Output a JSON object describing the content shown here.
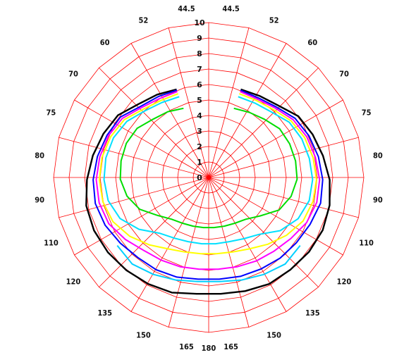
{
  "chart_data": {
    "type": "polar-line",
    "title": "",
    "radial_axis": {
      "min": 0,
      "max": 10,
      "ticks": [
        "0",
        "1",
        "2",
        "3",
        "4",
        "5",
        "6",
        "7",
        "8",
        "9",
        "10"
      ]
    },
    "angle_tick_labels": {
      "right": [
        "44.5",
        "52",
        "60",
        "70",
        "75",
        "80",
        "90",
        "110",
        "120",
        "135",
        "150",
        "165",
        "180"
      ],
      "left": [
        "44.5",
        "52",
        "60",
        "70",
        "75",
        "80",
        "90",
        "110",
        "120",
        "135",
        "150",
        "165"
      ]
    },
    "grid": true,
    "grid_color": "#ff0000",
    "series": [
      {
        "color": "#000000",
        "values": [
          6.05,
          6.3,
          6.55,
          7.1,
          7.35,
          7.6,
          7.85,
          8.1,
          8.15,
          8.1,
          8.0,
          7.9,
          7.8,
          7.55,
          7.55,
          7.7,
          7.9,
          7.95,
          8.05,
          8.1,
          8.0,
          7.8,
          7.5,
          7.25,
          7.0,
          6.45,
          6.2,
          6.05
        ]
      },
      {
        "color": "#0000ff",
        "values": [
          6.0,
          6.15,
          6.35,
          6.9,
          7.1,
          7.3,
          7.45,
          7.5,
          7.35,
          7.1,
          6.9,
          6.85,
          6.75,
          6.6,
          6.6,
          6.7,
          6.8,
          6.95,
          7.05,
          7.2,
          7.4,
          7.35,
          7.2,
          7.0,
          6.75,
          6.3,
          6.05,
          6.0
        ]
      },
      {
        "color": "#ff00ff",
        "values": [
          5.9,
          6.0,
          6.25,
          6.75,
          7.0,
          7.15,
          7.25,
          7.25,
          7.1,
          6.7,
          6.3,
          6.15,
          6.05,
          5.95,
          5.95,
          6.05,
          6.2,
          6.35,
          6.6,
          6.95,
          7.15,
          7.15,
          7.0,
          6.85,
          6.6,
          6.2,
          5.95,
          5.9
        ]
      },
      {
        "color": "#ffff00",
        "values": [
          5.75,
          5.85,
          6.1,
          6.6,
          6.85,
          7.0,
          7.05,
          7.0,
          6.8,
          6.35,
          5.8,
          5.3,
          5.05,
          4.95,
          4.95,
          5.05,
          5.3,
          5.75,
          6.25,
          6.7,
          6.9,
          6.95,
          6.85,
          6.7,
          6.45,
          6.05,
          5.85,
          5.75
        ]
      },
      {
        "color": "#00e0ff",
        "values": [
          5.55,
          5.7,
          5.95,
          6.4,
          6.65,
          6.75,
          6.75,
          6.65,
          6.3,
          5.6,
          4.8,
          4.5,
          4.35,
          4.3,
          4.3,
          4.35,
          4.55,
          4.9,
          5.75,
          6.35,
          6.65,
          6.7,
          6.6,
          6.5,
          6.3,
          5.85,
          5.65,
          5.55
        ]
      },
      {
        "color": "#00dd00",
        "values": [
          4.75,
          5.0,
          5.2,
          5.6,
          5.75,
          5.75,
          5.7,
          5.4,
          4.9,
          4.1,
          3.6,
          3.4,
          3.3,
          3.25,
          3.25,
          3.3,
          3.4,
          3.6,
          4.15,
          5.0,
          5.45,
          5.7,
          5.7,
          5.65,
          5.55,
          5.2,
          4.95,
          4.75
        ]
      },
      {
        "color": "#00d0ff",
        "values": [
          0,
          0,
          0,
          0,
          0,
          0,
          0,
          0,
          0,
          7.35,
          7.45,
          7.2,
          6.95,
          6.75,
          6.75,
          6.95,
          7.2,
          7.45,
          7.35,
          0,
          0,
          0,
          0,
          0,
          0,
          0,
          0,
          0
        ],
        "partial": true
      }
    ]
  }
}
